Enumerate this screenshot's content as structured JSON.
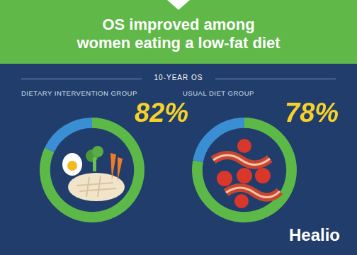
{
  "header": {
    "title": [
      "OS improved among",
      "women eating a low-fat diet"
    ],
    "subtitle": "10-YEAR OS",
    "brand": "Healio"
  },
  "chart_data": [
    {
      "type": "doughnut",
      "title": "DIETARY INTERVENTION GROUP",
      "values": [
        82,
        18
      ],
      "value_labels": [
        "82%",
        null
      ],
      "colors": [
        "#5cb947",
        "#3a8fd4"
      ],
      "data_labels": true,
      "legend": false
    },
    {
      "type": "doughnut",
      "title": "USUAL DIET GROUP",
      "values": [
        78,
        22
      ],
      "value_labels": [
        "78%",
        null
      ],
      "colors": [
        "#5cb947",
        "#3a8fd4"
      ],
      "data_labels": true,
      "legend": false
    }
  ]
}
